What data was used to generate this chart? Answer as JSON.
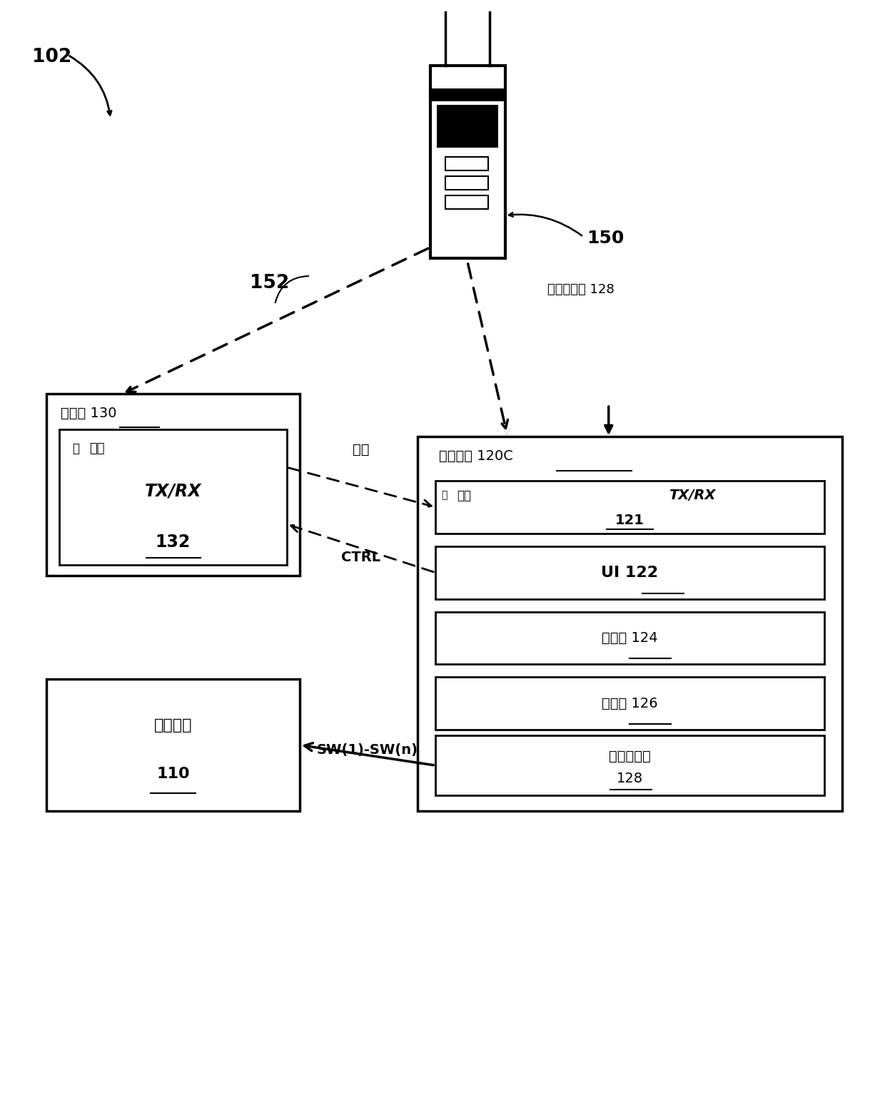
{
  "bg_color": "#ffffff",
  "fig_width": 12.4,
  "fig_height": 15.52,
  "label_102": "102",
  "label_150": "150",
  "label_152": "152",
  "label_wavegen_ext": "波形发生器 128",
  "sensor_box_label": "传感器 130",
  "sensor_inner_label1": "无线",
  "sensor_inner_label2": "TX/RX",
  "sensor_inner_label3": "132",
  "ctrl_outer_label": "控制单元 120C",
  "ctrl_box1_line1": "无线",
  "ctrl_box1_line2": "TX/RX",
  "ctrl_box1_line3": "121",
  "ctrl_box2_label": "UI 122",
  "ctrl_box3_label": "处理器 124",
  "ctrl_box4_label": "存储器 126",
  "ctrl_box5_line1": "波形生成器",
  "ctrl_box5_line2": "128",
  "stim_box_label1": "刺激电极",
  "stim_box_label2": "110",
  "arrow_feedback": "反馈",
  "arrow_ctrl": "CTRL",
  "arrow_sw": "SW(1)-SW(n)",
  "dot_label": "・"
}
